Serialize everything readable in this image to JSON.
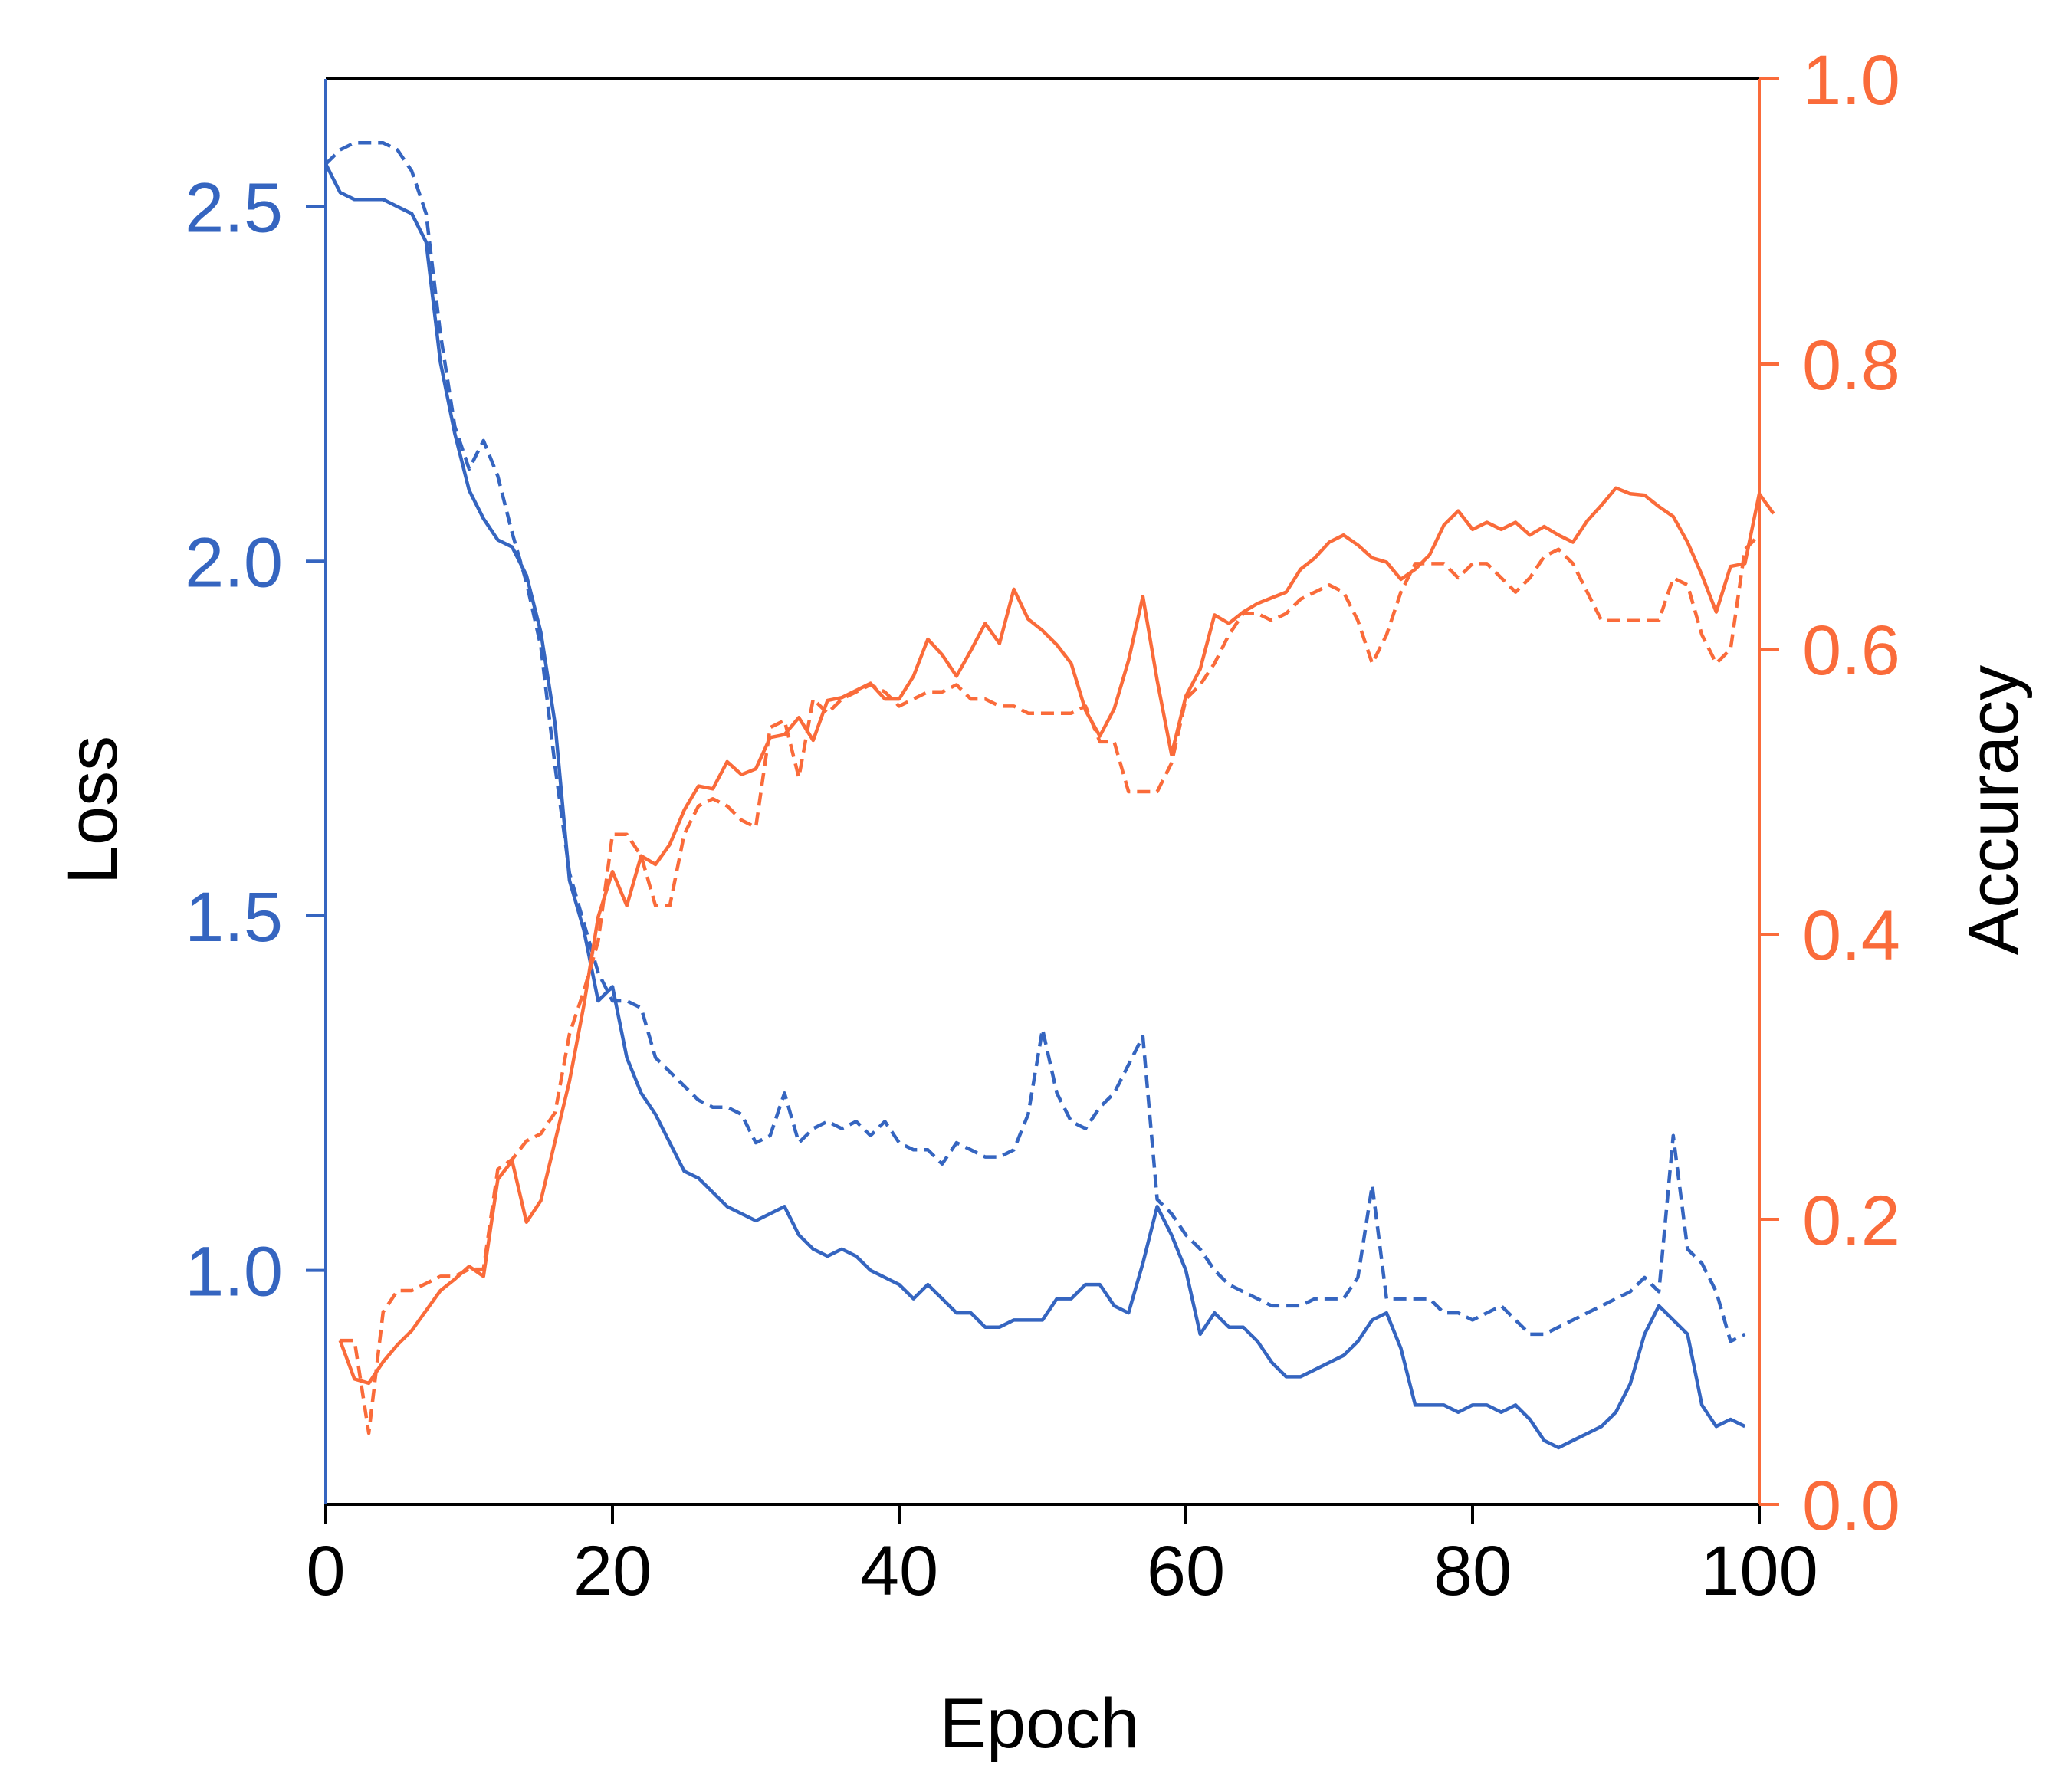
{
  "colors": {
    "loss": "#3565c0",
    "accuracy": "#fa6b3a",
    "frame": "#000000"
  },
  "chart_data": {
    "type": "line",
    "xlabel": "Epoch",
    "ylabel_left": "Loss",
    "ylabel_right": "Accuracy",
    "xlim": [
      0,
      100
    ],
    "ylim_left": [
      0.67,
      2.68
    ],
    "ylim_right": [
      0.0,
      1.0
    ],
    "xticks": [
      "0",
      "20",
      "40",
      "60",
      "80",
      "100"
    ],
    "yticks_left": [
      "1.0",
      "1.5",
      "2.0",
      "2.5"
    ],
    "yticks_right": [
      "0.0",
      "0.2",
      "0.4",
      "0.6",
      "0.8",
      "1.0"
    ],
    "grid": false,
    "legend": "none",
    "series": [
      {
        "axis": "left",
        "color": "loss",
        "style": "solid",
        "x_start": 0,
        "values": [
          2.56,
          2.52,
          2.51,
          2.51,
          2.51,
          2.5,
          2.49,
          2.45,
          2.28,
          2.18,
          2.1,
          2.06,
          2.03,
          2.02,
          1.98,
          1.9,
          1.77,
          1.55,
          1.48,
          1.38,
          1.4,
          1.3,
          1.25,
          1.22,
          1.18,
          1.14,
          1.13,
          1.11,
          1.09,
          1.08,
          1.07,
          1.08,
          1.09,
          1.05,
          1.03,
          1.02,
          1.03,
          1.02,
          1.0,
          0.99,
          0.98,
          0.96,
          0.98,
          0.96,
          0.94,
          0.94,
          0.92,
          0.92,
          0.93,
          0.93,
          0.93,
          0.96,
          0.96,
          0.98,
          0.98,
          0.95,
          0.94,
          1.01,
          1.09,
          1.05,
          1.0,
          0.91,
          0.94,
          0.92,
          0.92,
          0.9,
          0.87,
          0.85,
          0.85,
          0.86,
          0.87,
          0.88,
          0.9,
          0.93,
          0.94,
          0.89,
          0.81,
          0.81,
          0.81,
          0.8,
          0.81,
          0.81,
          0.8,
          0.81,
          0.79,
          0.76,
          0.75,
          0.76,
          0.77,
          0.78,
          0.8,
          0.84,
          0.91,
          0.95,
          0.93,
          0.91,
          0.81,
          0.78,
          0.79,
          0.78
        ]
      },
      {
        "axis": "left",
        "color": "loss",
        "style": "dashed",
        "x_start": 0,
        "values": [
          2.56,
          2.58,
          2.59,
          2.59,
          2.59,
          2.58,
          2.55,
          2.49,
          2.32,
          2.19,
          2.13,
          2.17,
          2.12,
          2.04,
          1.97,
          1.88,
          1.71,
          1.56,
          1.49,
          1.42,
          1.38,
          1.38,
          1.37,
          1.3,
          1.28,
          1.26,
          1.24,
          1.23,
          1.23,
          1.22,
          1.18,
          1.19,
          1.25,
          1.18,
          1.2,
          1.21,
          1.2,
          1.21,
          1.19,
          1.21,
          1.18,
          1.17,
          1.17,
          1.15,
          1.18,
          1.17,
          1.16,
          1.16,
          1.17,
          1.22,
          1.34,
          1.25,
          1.21,
          1.2,
          1.23,
          1.25,
          1.29,
          1.33,
          1.1,
          1.08,
          1.05,
          1.03,
          1.0,
          0.98,
          0.97,
          0.96,
          0.95,
          0.95,
          0.95,
          0.96,
          0.96,
          0.96,
          0.99,
          1.12,
          0.96,
          0.96,
          0.96,
          0.96,
          0.94,
          0.94,
          0.93,
          0.94,
          0.95,
          0.93,
          0.91,
          0.91,
          0.92,
          0.93,
          0.94,
          0.95,
          0.96,
          0.97,
          0.99,
          0.97,
          1.19,
          1.03,
          1.01,
          0.97,
          0.9,
          0.91
        ]
      },
      {
        "axis": "right",
        "color": "accuracy",
        "style": "solid",
        "x_start": 1,
        "values": [
          0.115,
          0.088,
          0.085,
          0.1,
          0.112,
          0.122,
          0.136,
          0.15,
          0.158,
          0.167,
          0.16,
          0.228,
          0.241,
          0.198,
          0.213,
          0.255,
          0.297,
          0.35,
          0.412,
          0.444,
          0.42,
          0.455,
          0.449,
          0.463,
          0.487,
          0.504,
          0.502,
          0.521,
          0.512,
          0.516,
          0.538,
          0.54,
          0.552,
          0.536,
          0.564,
          0.566,
          0.571,
          0.576,
          0.565,
          0.565,
          0.581,
          0.607,
          0.596,
          0.581,
          0.599,
          0.618,
          0.604,
          0.642,
          0.621,
          0.613,
          0.603,
          0.59,
          0.557,
          0.539,
          0.558,
          0.592,
          0.637,
          0.578,
          0.526,
          0.567,
          0.586,
          0.624,
          0.618,
          0.626,
          0.632,
          0.636,
          0.64,
          0.656,
          0.664,
          0.675,
          0.68,
          0.673,
          0.664,
          0.661,
          0.649,
          0.656,
          0.666,
          0.687,
          0.697,
          0.684,
          0.689,
          0.684,
          0.689,
          0.68,
          0.686,
          0.68,
          0.675,
          0.69,
          0.701,
          0.713,
          0.709,
          0.708,
          0.7,
          0.693,
          0.675,
          0.652,
          0.626,
          0.658,
          0.66,
          0.709,
          0.695
        ]
      },
      {
        "axis": "right",
        "color": "accuracy",
        "style": "dashed",
        "x_start": 1,
        "values": [
          0.115,
          0.115,
          0.05,
          0.135,
          0.15,
          0.15,
          0.155,
          0.16,
          0.16,
          0.165,
          0.165,
          0.235,
          0.242,
          0.255,
          0.26,
          0.275,
          0.33,
          0.36,
          0.395,
          0.47,
          0.47,
          0.455,
          0.42,
          0.42,
          0.47,
          0.49,
          0.495,
          0.49,
          0.48,
          0.475,
          0.545,
          0.55,
          0.51,
          0.565,
          0.555,
          0.565,
          0.57,
          0.575,
          0.57,
          0.56,
          0.565,
          0.57,
          0.57,
          0.575,
          0.565,
          0.565,
          0.56,
          0.56,
          0.555,
          0.555,
          0.555,
          0.555,
          0.56,
          0.535,
          0.535,
          0.5,
          0.5,
          0.5,
          0.52,
          0.565,
          0.575,
          0.59,
          0.61,
          0.625,
          0.625,
          0.62,
          0.625,
          0.635,
          0.64,
          0.645,
          0.64,
          0.62,
          0.59,
          0.61,
          0.64,
          0.66,
          0.66,
          0.66,
          0.65,
          0.66,
          0.66,
          0.65,
          0.64,
          0.65,
          0.665,
          0.67,
          0.66,
          0.64,
          0.62,
          0.62,
          0.62,
          0.62,
          0.62,
          0.65,
          0.645,
          0.61,
          0.59,
          0.6,
          0.67,
          0.68
        ]
      }
    ]
  }
}
